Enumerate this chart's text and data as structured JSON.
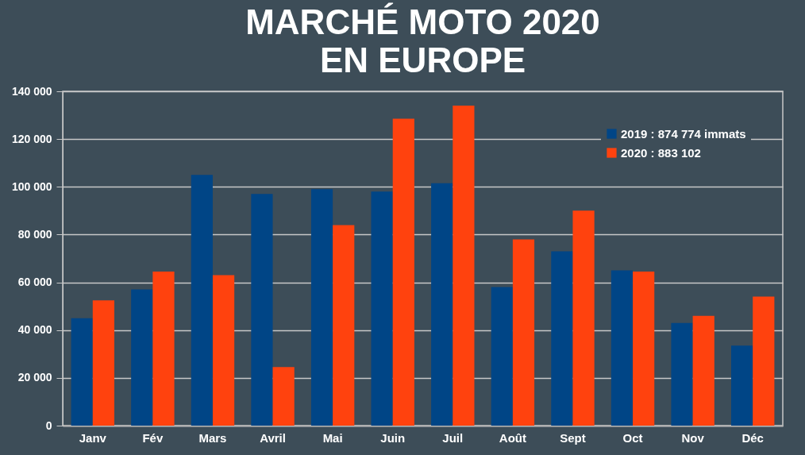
{
  "chart_data": {
    "type": "bar",
    "title": "MARCHÉ MOTO 2020\nEN EUROPE",
    "categories": [
      "Janv",
      "Fév",
      "Mars",
      "Avril",
      "Mai",
      "Juin",
      "Juil",
      "Août",
      "Sept",
      "Oct",
      "Nov",
      "Déc"
    ],
    "series": [
      {
        "name": "2019 : 874 774 immats",
        "color": "#004586",
        "values": [
          45000,
          57000,
          105000,
          97000,
          99000,
          98000,
          101500,
          58000,
          73000,
          65000,
          43000,
          33500
        ]
      },
      {
        "name": "2020 : 883 102",
        "color": "#ff420e",
        "values": [
          52500,
          64500,
          63000,
          24500,
          84000,
          128500,
          134000,
          78000,
          90000,
          64500,
          46000,
          54000
        ]
      }
    ],
    "ylim": [
      0,
      140000
    ],
    "yticks": [
      0,
      {
        "value": 20000,
        "label": "20 000"
      },
      {
        "value": 40000,
        "label": "40 000"
      },
      {
        "value": 60000,
        "label": "60 000"
      },
      {
        "value": 80000,
        "label": "80 000"
      },
      {
        "value": 100000,
        "label": "100 000"
      },
      {
        "value": 120000,
        "label": "120 000"
      },
      {
        "value": 140000,
        "label": "140 000"
      }
    ],
    "grid": "y",
    "legend": "top right"
  }
}
